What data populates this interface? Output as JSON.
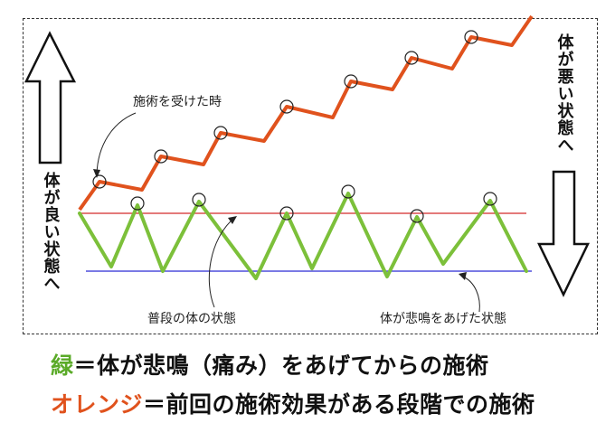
{
  "annotations": {
    "treatment_time": "施術を受けた時",
    "normal_state": "普段の体の状態",
    "body_crying_state": "体が悲鳴をあげた状態"
  },
  "arrows": {
    "bad_label": "体が悪い状態へ",
    "good_label": "体が良い状態へ"
  },
  "legend": {
    "green": {
      "key": "緑",
      "text": "＝体が悲鳴（痛み）をあげてからの施術",
      "color": "#5aaa28"
    },
    "orange": {
      "key": "オレンジ",
      "text": "＝前回の施術効果がある段階での施術",
      "color": "#e0521d"
    }
  },
  "colors": {
    "orange_line": "#e0521d",
    "green_line": "#7cc03a",
    "red_baseline": "#d42a2a",
    "blue_baseline": "#2a2ad4"
  }
}
